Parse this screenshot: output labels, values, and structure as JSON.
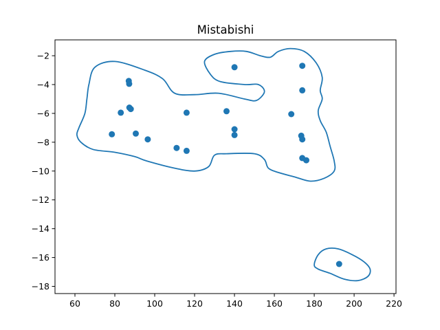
{
  "chart_data": {
    "type": "scatter",
    "title": "Mistabishi",
    "xlabel": "",
    "ylabel": "",
    "xlim": [
      50,
      221
    ],
    "ylim": [
      -18.5,
      -0.9
    ],
    "xticks": [
      60,
      80,
      100,
      120,
      140,
      160,
      180,
      200,
      220
    ],
    "yticks": [
      -18,
      -16,
      -14,
      -12,
      -10,
      -8,
      -6,
      -4,
      -2
    ],
    "grid": false,
    "color": "#1f77b4",
    "points": [
      {
        "x": 87.0,
        "y": -3.75
      },
      {
        "x": 87.2,
        "y": -3.95
      },
      {
        "x": 87.3,
        "y": -5.6
      },
      {
        "x": 88.0,
        "y": -5.7
      },
      {
        "x": 83.0,
        "y": -5.95
      },
      {
        "x": 78.5,
        "y": -7.45
      },
      {
        "x": 90.5,
        "y": -7.4
      },
      {
        "x": 96.5,
        "y": -7.8
      },
      {
        "x": 111.0,
        "y": -8.4
      },
      {
        "x": 116.0,
        "y": -8.6
      },
      {
        "x": 116.0,
        "y": -5.95
      },
      {
        "x": 136.0,
        "y": -5.85
      },
      {
        "x": 140.0,
        "y": -2.8
      },
      {
        "x": 140.0,
        "y": -7.1
      },
      {
        "x": 140.0,
        "y": -7.5
      },
      {
        "x": 168.5,
        "y": -6.05
      },
      {
        "x": 174.0,
        "y": -2.7
      },
      {
        "x": 174.0,
        "y": -4.4
      },
      {
        "x": 173.5,
        "y": -7.55
      },
      {
        "x": 174.0,
        "y": -7.8
      },
      {
        "x": 174.0,
        "y": -9.1
      },
      {
        "x": 176.0,
        "y": -9.25
      },
      {
        "x": 192.5,
        "y": -16.45
      }
    ],
    "contours": [
      [
        [
          62,
          -7.0
        ],
        [
          65,
          -6.0
        ],
        [
          66,
          -5.0
        ],
        [
          67,
          -4.0
        ],
        [
          70,
          -2.8
        ],
        [
          80,
          -2.4
        ],
        [
          95,
          -3.0
        ],
        [
          104,
          -3.6
        ],
        [
          110,
          -4.6
        ],
        [
          120,
          -4.7
        ],
        [
          132,
          -4.6
        ],
        [
          145,
          -5.0
        ],
        [
          151,
          -5.1
        ],
        [
          155,
          -4.5
        ],
        [
          152,
          -4.0
        ],
        [
          145,
          -4.0
        ],
        [
          133,
          -3.8
        ],
        [
          128,
          -3.3
        ],
        [
          125,
          -2.4
        ],
        [
          130,
          -1.9
        ],
        [
          138,
          -1.7
        ],
        [
          146,
          -1.7
        ],
        [
          153,
          -2.0
        ],
        [
          158,
          -2.1
        ],
        [
          162,
          -1.7
        ],
        [
          168,
          -1.5
        ],
        [
          175,
          -1.7
        ],
        [
          181,
          -2.5
        ],
        [
          184,
          -3.5
        ],
        [
          183,
          -4.4
        ],
        [
          184,
          -5.0
        ],
        [
          182,
          -5.8
        ],
        [
          183,
          -6.5
        ],
        [
          186,
          -7.3
        ],
        [
          188,
          -8.3
        ],
        [
          190,
          -9.3
        ],
        [
          190,
          -10.0
        ],
        [
          185,
          -10.5
        ],
        [
          178,
          -10.7
        ],
        [
          170,
          -10.4
        ],
        [
          162,
          -10.1
        ],
        [
          157,
          -9.8
        ],
        [
          155,
          -9.2
        ],
        [
          150,
          -8.8
        ],
        [
          136,
          -8.8
        ],
        [
          130,
          -8.9
        ],
        [
          127,
          -9.7
        ],
        [
          120,
          -10.0
        ],
        [
          110,
          -9.8
        ],
        [
          96,
          -9.3
        ],
        [
          90,
          -9.0
        ],
        [
          80,
          -8.7
        ],
        [
          69,
          -8.5
        ],
        [
          63,
          -8.0
        ],
        [
          61,
          -7.5
        ],
        [
          62,
          -7.0
        ]
      ],
      [
        [
          180,
          -16.5
        ],
        [
          182,
          -15.8
        ],
        [
          186,
          -15.4
        ],
        [
          192,
          -15.4
        ],
        [
          199,
          -15.8
        ],
        [
          205,
          -16.3
        ],
        [
          208,
          -16.8
        ],
        [
          207,
          -17.3
        ],
        [
          202,
          -17.6
        ],
        [
          195,
          -17.5
        ],
        [
          188,
          -17.1
        ],
        [
          182,
          -16.8
        ],
        [
          180,
          -16.5
        ]
      ]
    ]
  }
}
